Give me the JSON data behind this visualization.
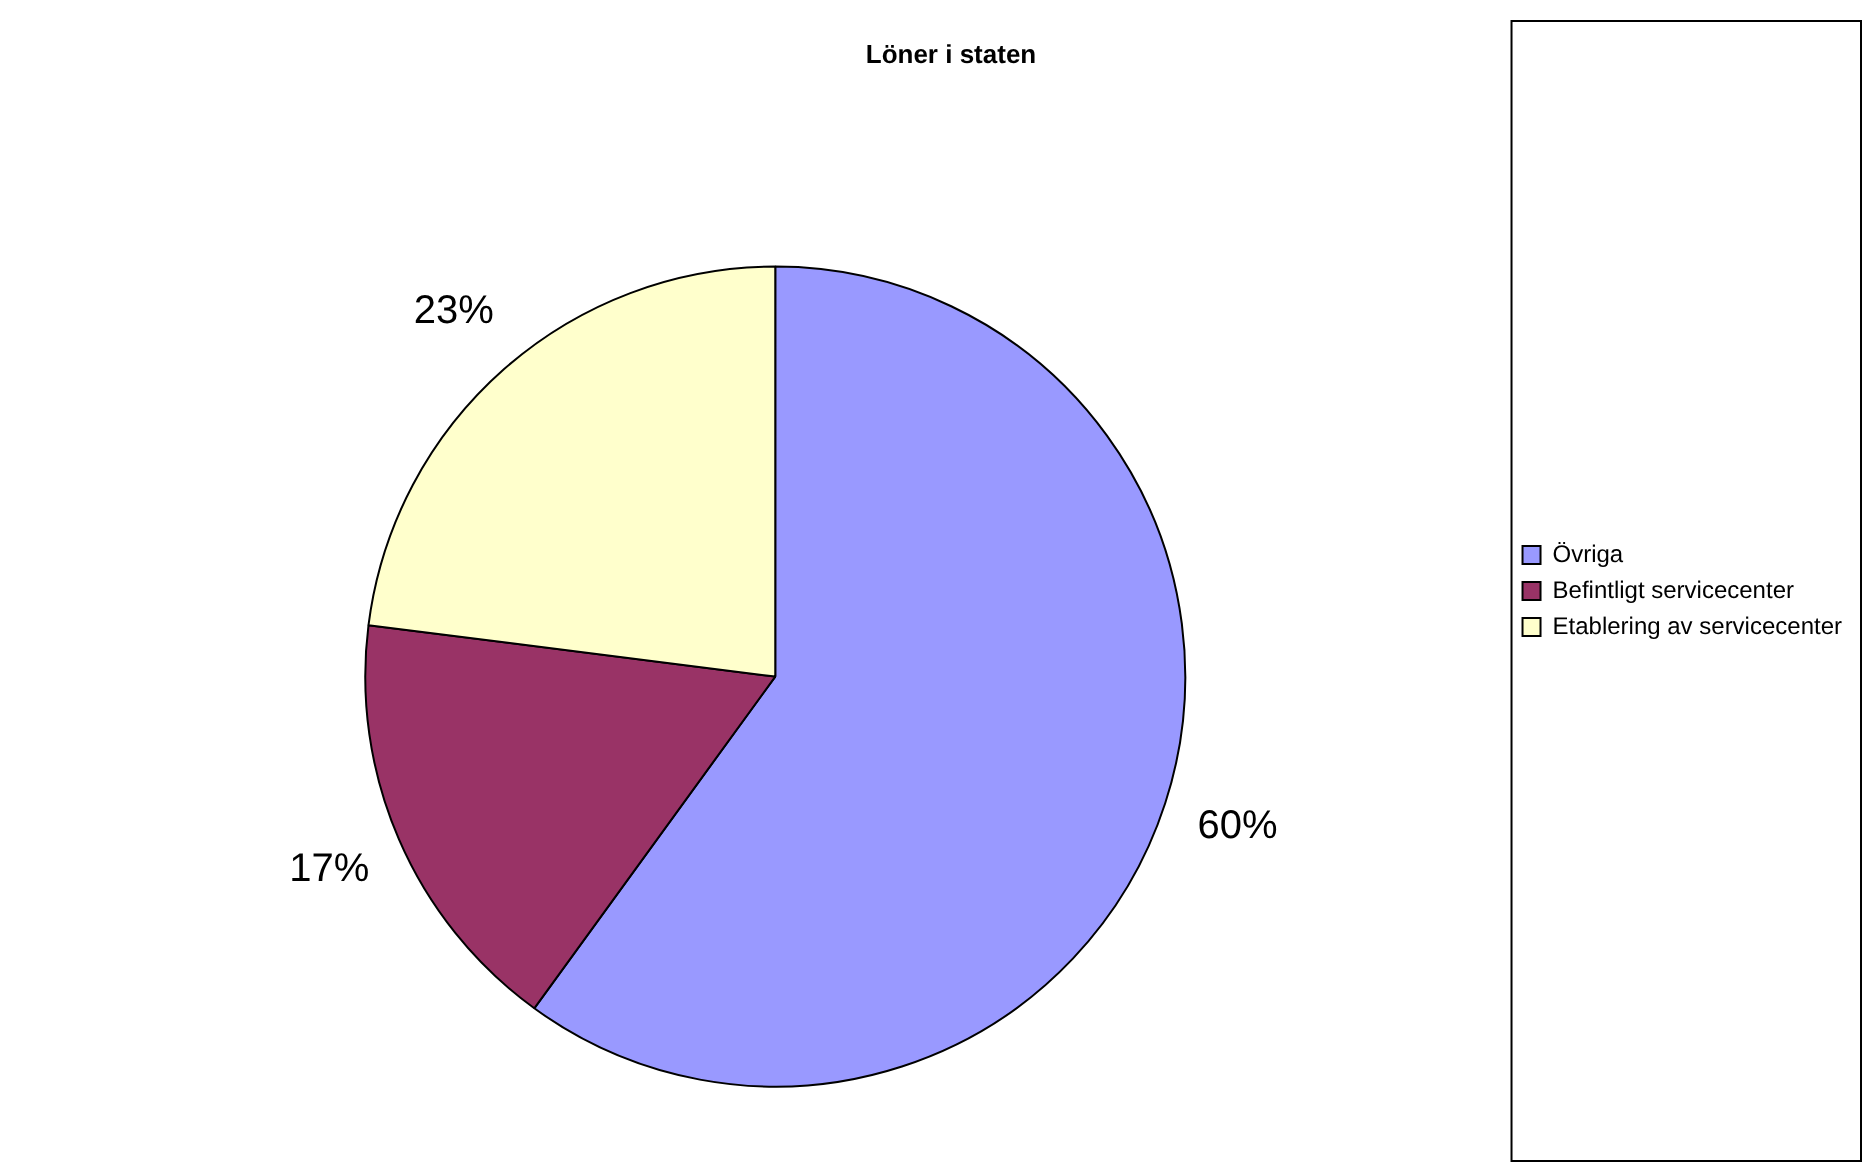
{
  "chart_data": {
    "type": "pie",
    "title": "Löner i staten",
    "categories": [
      "Övriga",
      "Befintligt servicecenter",
      "Etablering av servicecenter"
    ],
    "values": [
      60,
      17,
      23
    ],
    "colors": [
      "#9999ff",
      "#993366",
      "#ffffcc"
    ],
    "value_labels": [
      "60%",
      "17%",
      "23%"
    ],
    "legend": "right"
  }
}
